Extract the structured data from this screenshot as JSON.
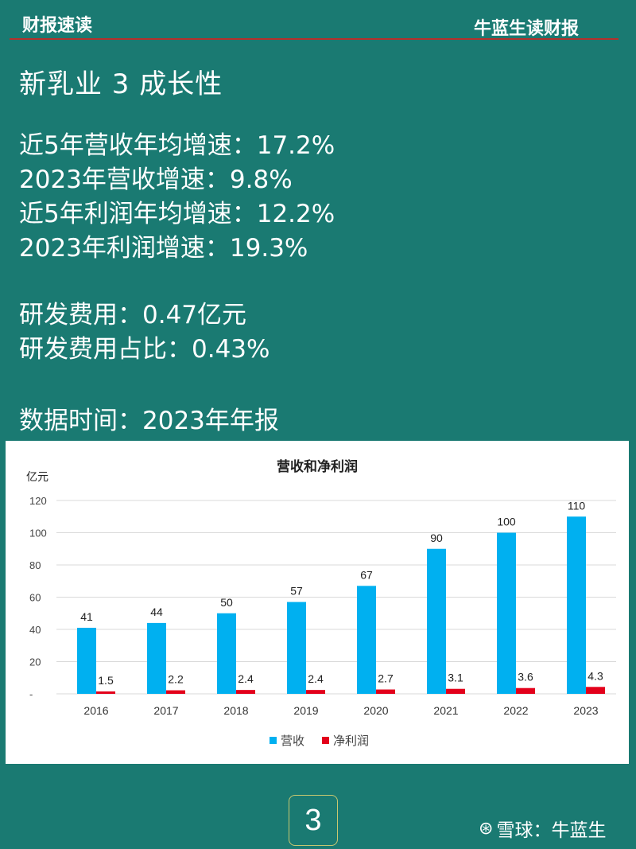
{
  "header": {
    "left_title": "财报速读",
    "right_title": "牛蓝生读财报"
  },
  "headline": "新乳业 3 成长性",
  "metrics": [
    "近5年营收年均增速：17.2%",
    "2023年营收增速：9.8%",
    "近5年利润年均增速：12.2%",
    "2023年利润增速：19.3%"
  ],
  "rd": [
    "研发费用：0.47亿元",
    "研发费用占比：0.43%"
  ],
  "data_time": "数据时间：2023年年报",
  "chart_data": {
    "type": "bar",
    "title": "营收和净利润",
    "unit_label": "亿元",
    "categories": [
      "2016",
      "2017",
      "2018",
      "2019",
      "2020",
      "2021",
      "2022",
      "2023"
    ],
    "series": [
      {
        "name": "营收",
        "color": "#00b0f0",
        "values": [
          41,
          44,
          50,
          57,
          67,
          90,
          100,
          110
        ],
        "labels": [
          "41",
          "44",
          "50",
          "57",
          "67",
          "90",
          "100",
          "110"
        ]
      },
      {
        "name": "净利润",
        "color": "#e3001b",
        "values": [
          1.5,
          2.2,
          2.4,
          2.4,
          2.7,
          3.1,
          3.6,
          4.3
        ],
        "labels": [
          "1.5",
          "2.2",
          "2.4",
          "2.4",
          "2.7",
          "3.1",
          "3.6",
          "4.3"
        ]
      }
    ],
    "y_ticks": [
      0,
      20,
      40,
      60,
      80,
      100,
      120
    ],
    "y_tick_labels": [
      "-",
      "20",
      "40",
      "60",
      "80",
      "100",
      "120"
    ],
    "ylim": [
      0,
      120
    ],
    "grid": true,
    "legend_position": "bottom-center"
  },
  "footer": {
    "page_number": "3",
    "watermark_logo": "⊛",
    "watermark_text": "雪球：牛蓝生"
  }
}
